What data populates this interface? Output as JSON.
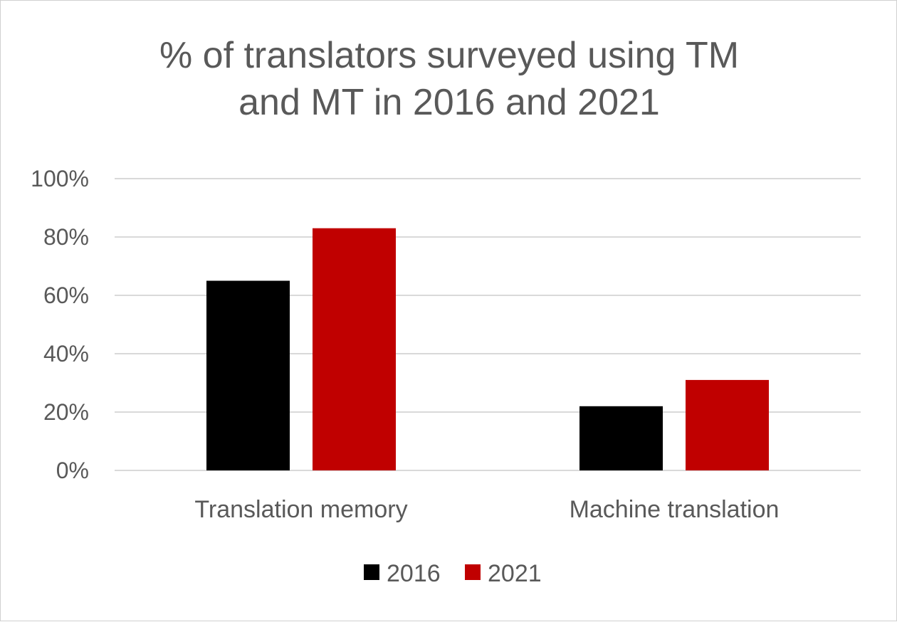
{
  "chart_data": {
    "type": "bar",
    "title_lines": [
      "% of translators surveyed using TM",
      "and MT in 2016 and 2021"
    ],
    "categories": [
      "Translation memory",
      "Machine translation"
    ],
    "series": [
      {
        "name": "2016",
        "color": "#000000",
        "values": [
          65,
          22
        ]
      },
      {
        "name": "2021",
        "color": "#c00000",
        "values": [
          83,
          31
        ]
      }
    ],
    "ylim": [
      0,
      100
    ],
    "yticks": [
      0,
      20,
      40,
      60,
      80,
      100
    ],
    "ytick_labels": [
      "0%",
      "20%",
      "40%",
      "60%",
      "80%",
      "100%"
    ],
    "grid": true,
    "legend_position": "bottom"
  }
}
